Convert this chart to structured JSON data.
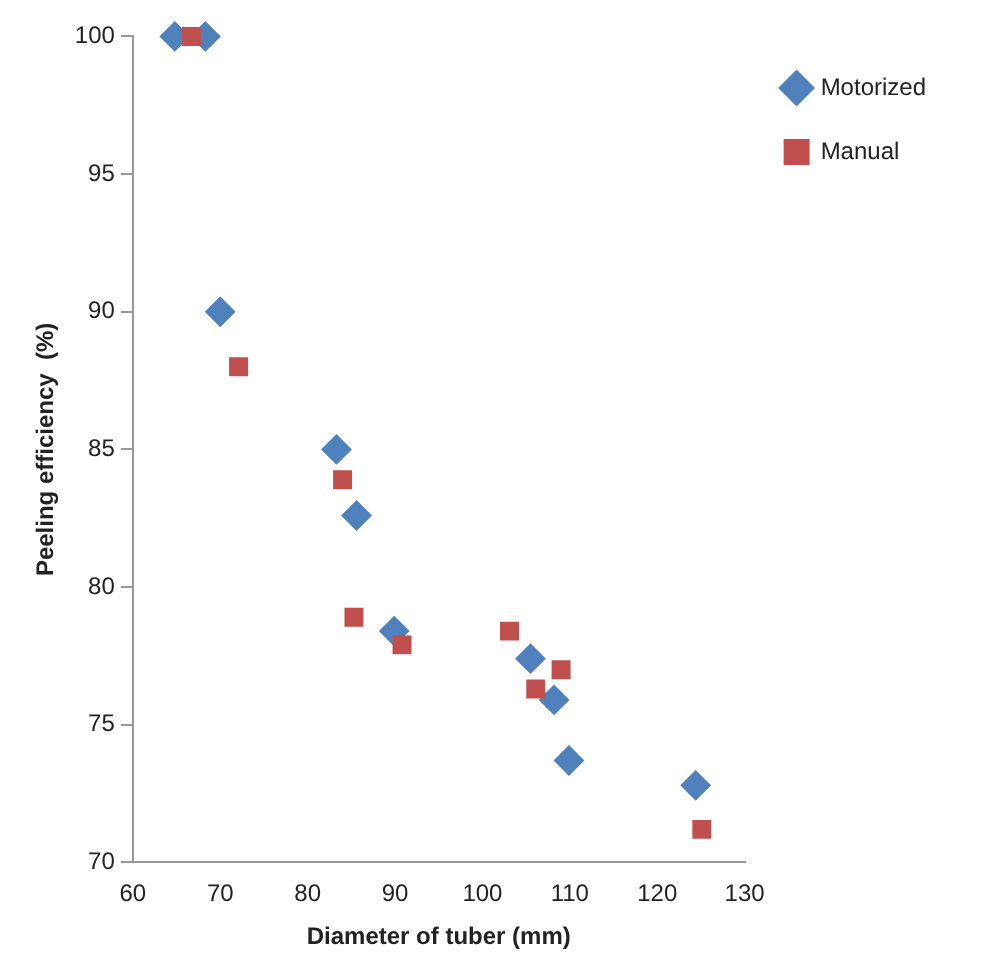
{
  "chart_data": {
    "type": "scatter",
    "xlabel": "Diameter of tuber (mm)",
    "ylabel": "Peeling efficiency  (%)",
    "xlim": [
      60,
      130
    ],
    "xticks": [
      60,
      70,
      80,
      90,
      100,
      110,
      120,
      130
    ],
    "ylim": [
      70,
      100
    ],
    "yticks": [
      70,
      75,
      80,
      85,
      90,
      95,
      100
    ],
    "grid": false,
    "legend": "top right",
    "series": [
      {
        "name": "Motorized",
        "color": "#4f81bd",
        "marker": "diamond",
        "x": [
          64.8,
          68.3,
          70,
          83.3,
          85.6,
          89.9,
          105.5,
          108.2,
          109.9,
          124.4
        ],
        "values": [
          100,
          100,
          90,
          85,
          82.6,
          78.4,
          77.4,
          75.9,
          73.7,
          72.8
        ]
      },
      {
        "name": "Manual",
        "color": "#c0504d",
        "marker": "square",
        "x": [
          66.7,
          72.1,
          84,
          85.3,
          90.8,
          103.1,
          106.1,
          109,
          125.1
        ],
        "values": [
          100,
          88,
          83.9,
          78.9,
          77.9,
          78.4,
          76.3,
          77,
          71.2
        ]
      }
    ]
  }
}
